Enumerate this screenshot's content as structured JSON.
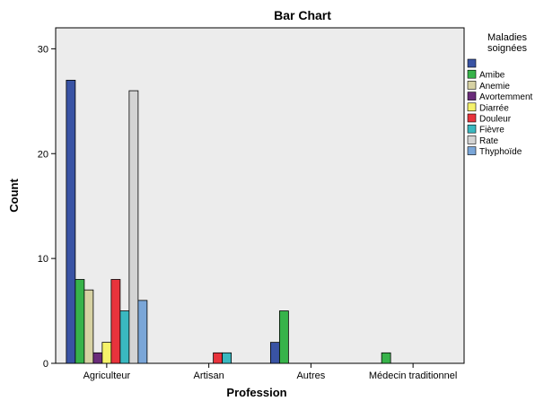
{
  "chart_data": {
    "type": "bar",
    "title": "Bar Chart",
    "xlabel": "Profession",
    "ylabel": "Count",
    "ylim": [
      0,
      32
    ],
    "yticks": [
      0,
      10,
      20,
      30
    ],
    "categories": [
      "Agriculteur",
      "Artisan",
      "Autres",
      "Médecin traditionnel"
    ],
    "legend": {
      "title_lines": [
        "Maladies",
        "soignées"
      ],
      "position": "right"
    },
    "series": [
      {
        "name": "",
        "color": "#3953a4",
        "values": [
          27,
          0,
          2,
          0
        ]
      },
      {
        "name": "Amibe",
        "color": "#37b34a",
        "values": [
          8,
          0,
          5,
          1
        ]
      },
      {
        "name": "Anemie",
        "color": "#d7d2a4",
        "values": [
          7,
          0,
          0,
          0
        ]
      },
      {
        "name": "Avortemment",
        "color": "#6a2c7a",
        "values": [
          1,
          0,
          0,
          0
        ]
      },
      {
        "name": "Diarrée",
        "color": "#f5f26a",
        "values": [
          2,
          0,
          0,
          0
        ]
      },
      {
        "name": "Douleur",
        "color": "#e8333c",
        "values": [
          8,
          1,
          0,
          0
        ]
      },
      {
        "name": "Fièvre",
        "color": "#3ab8c0",
        "values": [
          5,
          1,
          0,
          0
        ]
      },
      {
        "name": "Rate",
        "color": "#d4d4d4",
        "values": [
          26,
          0,
          0,
          0
        ]
      },
      {
        "name": "Thyphoïde",
        "color": "#7aa6d8",
        "values": [
          6,
          0,
          0,
          0
        ]
      }
    ],
    "plot_background": "#ececec",
    "grid": false
  }
}
